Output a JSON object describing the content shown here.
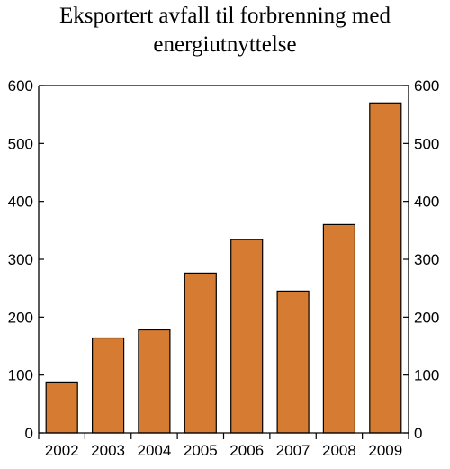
{
  "chart_data": {
    "type": "bar",
    "title_line1": "Eksportert avfall til forbrenning med",
    "title_line2": "energiutnyttelse",
    "categories": [
      "2002",
      "2003",
      "2004",
      "2005",
      "2006",
      "2007",
      "2008",
      "2009"
    ],
    "values": [
      88,
      164,
      178,
      276,
      334,
      245,
      360,
      570
    ],
    "ylim": [
      0,
      600
    ],
    "yticks": [
      0,
      100,
      200,
      300,
      400,
      500,
      600
    ],
    "secondary_y_axis": true,
    "grid": false,
    "bar_color": "#d67b32",
    "bar_edge_color": "#000000"
  }
}
